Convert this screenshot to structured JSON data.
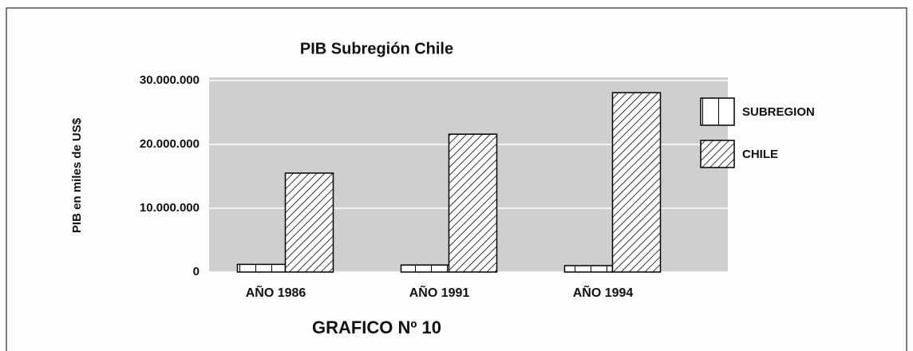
{
  "chart_data": {
    "type": "bar",
    "title": "PIB Subregión Chile",
    "ylabel": "PIB en miles de US$",
    "caption": "GRAFICO Nº 10",
    "categories": [
      "AÑO 1986",
      "AÑO 1991",
      "AÑO 1994"
    ],
    "series": [
      {
        "name": "SUBREGION",
        "color": "#000000",
        "pattern": "vertical",
        "values": [
          1200000,
          1100000,
          1000000
        ]
      },
      {
        "name": "CHILE",
        "color": "#000000",
        "pattern": "diagonal",
        "values": [
          15500000,
          21600000,
          28100000
        ]
      }
    ],
    "ylim": [
      0,
      30000000
    ],
    "yticks": [
      0,
      {
        "value": 10000000,
        "label": "10.000.000"
      },
      {
        "value": 20000000,
        "label": "20.000.000"
      },
      {
        "value": 30000000,
        "label": "30.000.000"
      }
    ],
    "grid": true,
    "legend": "right",
    "background": "#cfcfcf"
  }
}
